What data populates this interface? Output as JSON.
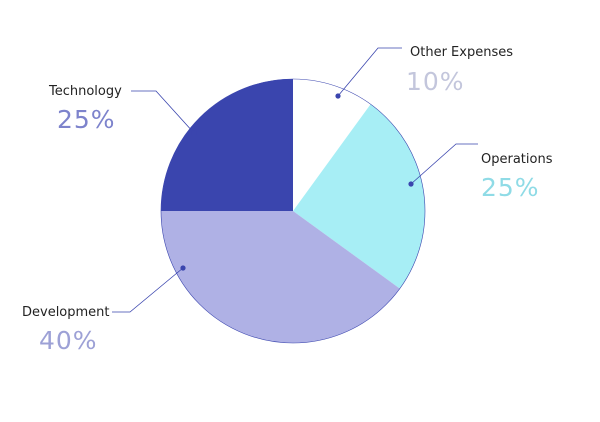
{
  "chart_data": {
    "type": "pie",
    "slices": [
      {
        "label": "Other Expenses",
        "value": 10,
        "percent_label": "10%",
        "color": "#ffffff",
        "label_color": "#c3c6dc"
      },
      {
        "label": "Operations",
        "value": 25,
        "percent_label": "25%",
        "color": "#a7eef5",
        "label_color": "#8fdbe6"
      },
      {
        "label": "Development",
        "value": 40,
        "percent_label": "40%",
        "color": "#afb1e5",
        "label_color": "#9da1d6"
      },
      {
        "label": "Technology",
        "value": 25,
        "percent_label": "25%",
        "color": "#3a45ae",
        "label_color": "#7d83cc"
      }
    ],
    "start_angle_deg": 0,
    "direction": "clockwise",
    "outline_color": "#3a45ae",
    "leader_color": "#3a45ae"
  }
}
